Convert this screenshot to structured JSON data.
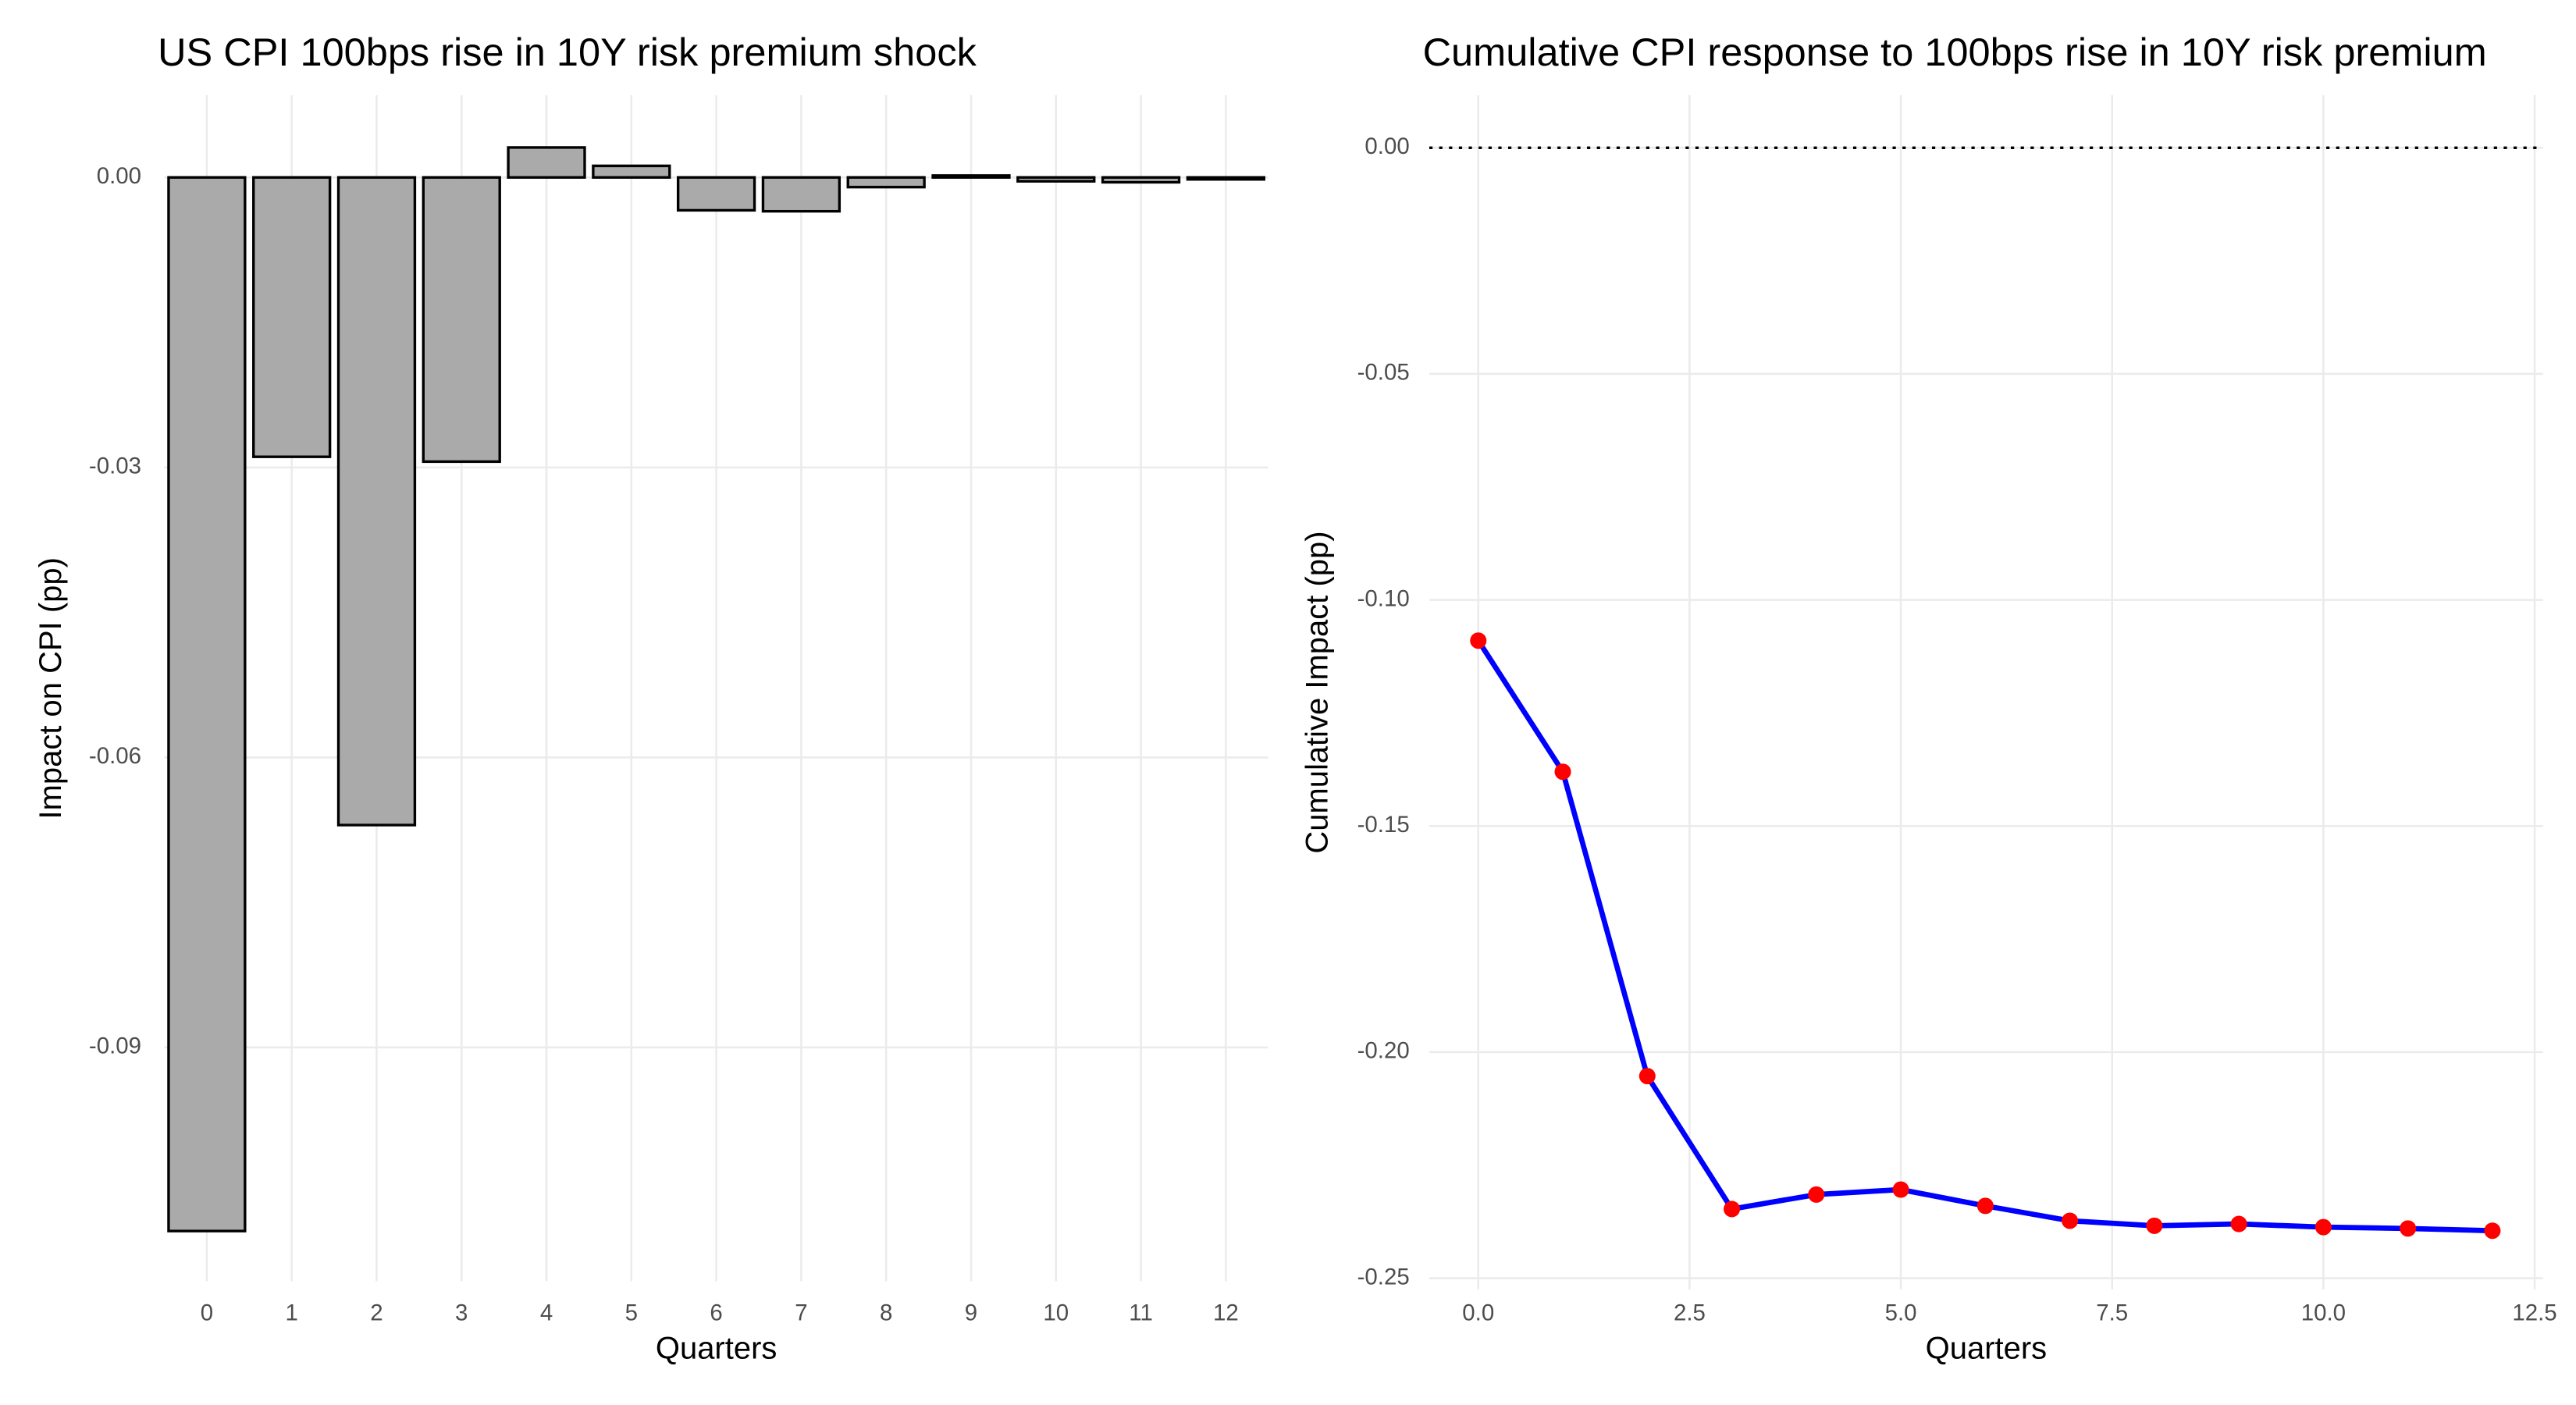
{
  "chart_data": [
    {
      "type": "bar",
      "title": "US CPI 100bps rise in 10Y risk premium shock",
      "x_label": "Quarters",
      "y_label": "Impact on CPI (pp)",
      "categories": [
        "0",
        "1",
        "2",
        "3",
        "4",
        "5",
        "6",
        "7",
        "8",
        "9",
        "10",
        "11",
        "12"
      ],
      "values": [
        -0.109,
        -0.0289,
        -0.067,
        -0.0294,
        0.0031,
        0.0012,
        -0.0034,
        -0.0035,
        -0.001,
        0.0002,
        -0.0004,
        -0.0005,
        -0.0002
      ],
      "color": "#aaaaaa",
      "edge_color": "#000000",
      "ylim": [
        -0.1142,
        0.0085
      ],
      "yticks": [
        {
          "value": 0,
          "label": "0.00"
        },
        {
          "value": -0.03,
          "label": "-0.03"
        },
        {
          "value": -0.06,
          "label": "-0.06"
        },
        {
          "value": -0.09,
          "label": "-0.09"
        }
      ],
      "grid": true
    },
    {
      "type": "line",
      "title": "Cumulative CPI response to 100bps rise in 10Y risk premium",
      "x_label": "Quarters",
      "y_label": "Cumulative Impact (pp)",
      "x": [
        0,
        1,
        2,
        3,
        4,
        5,
        6,
        7,
        8,
        9,
        10,
        11,
        12
      ],
      "values": [
        -0.109,
        -0.138,
        -0.2053,
        -0.2347,
        -0.2315,
        -0.2304,
        -0.234,
        -0.2373,
        -0.2384,
        -0.238,
        -0.2387,
        -0.239,
        -0.2395
      ],
      "color": "#0000ff",
      "marker_color": "#ff0000",
      "xlim": [
        -0.58,
        12.6
      ],
      "xticks": [
        {
          "value": 0,
          "label": "0.0"
        },
        2.5,
        {
          "value": 5,
          "label": "5.0"
        },
        7.5,
        {
          "value": 10,
          "label": "10.0"
        },
        12.5
      ],
      "ylim": [
        -0.2525,
        0.0116
      ],
      "yticks": [
        {
          "value": 0,
          "label": "0.00"
        },
        {
          "value": -0.05,
          "label": "-0.05"
        },
        {
          "value": -0.1,
          "label": "-0.10"
        },
        {
          "value": -0.15,
          "label": "-0.15"
        },
        {
          "value": -0.2,
          "label": "-0.20"
        },
        {
          "value": -0.25,
          "label": "-0.25"
        }
      ],
      "reference_line": 0,
      "grid": true
    }
  ]
}
